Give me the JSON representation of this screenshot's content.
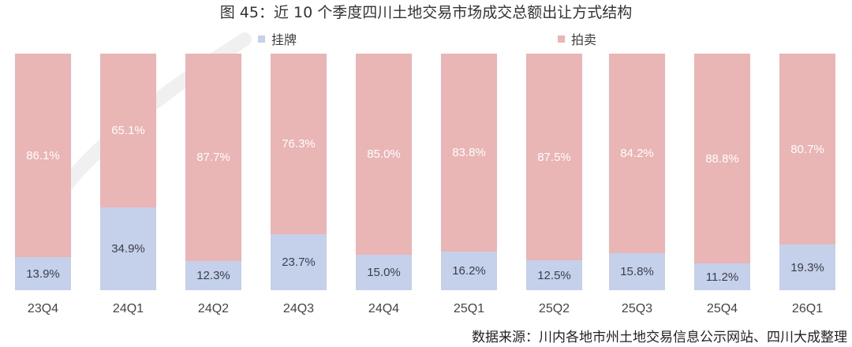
{
  "title": "图 45：近 10 个季度四川土地交易市场成交总额出让方式结构",
  "legend": [
    {
      "label": "挂牌",
      "color": "#C5D0EA"
    },
    {
      "label": "拍卖",
      "color": "#E9B5B5"
    }
  ],
  "source": "数据来源：川内各地市州土地交易信息公示网站、四川大成整理",
  "bars": [
    {
      "category": "23Q4",
      "listing": 13.9,
      "auction": 86.1,
      "listing_label": "13.9%",
      "auction_label": "86.1%"
    },
    {
      "category": "24Q1",
      "listing": 34.9,
      "auction": 65.1,
      "listing_label": "34.9%",
      "auction_label": "65.1%"
    },
    {
      "category": "24Q2",
      "listing": 12.3,
      "auction": 87.7,
      "listing_label": "12.3%",
      "auction_label": "87.7%"
    },
    {
      "category": "24Q3",
      "listing": 23.7,
      "auction": 76.3,
      "listing_label": "23.7%",
      "auction_label": "76.3%"
    },
    {
      "category": "24Q4",
      "listing": 15.0,
      "auction": 85.0,
      "listing_label": "15.0%",
      "auction_label": "85.0%"
    },
    {
      "category": "25Q1",
      "listing": 16.2,
      "auction": 83.8,
      "listing_label": "16.2%",
      "auction_label": "83.8%"
    },
    {
      "category": "25Q2",
      "listing": 12.5,
      "auction": 87.5,
      "listing_label": "12.5%",
      "auction_label": "87.5%"
    },
    {
      "category": "25Q3",
      "listing": 15.8,
      "auction": 84.2,
      "listing_label": "15.8%",
      "auction_label": "84.2%"
    },
    {
      "category": "25Q4",
      "listing": 11.2,
      "auction": 88.8,
      "listing_label": "11.2%",
      "auction_label": "88.8%"
    },
    {
      "category": "26Q1",
      "listing": 19.3,
      "auction": 80.7,
      "listing_label": "19.3%",
      "auction_label": "80.7%"
    }
  ],
  "chart_data": {
    "type": "bar",
    "stacked": true,
    "percent": true,
    "title": "图 45：近 10 个季度四川土地交易市场成交总额出让方式结构",
    "categories": [
      "23Q4",
      "24Q1",
      "24Q2",
      "24Q3",
      "24Q4",
      "25Q1",
      "25Q2",
      "25Q3",
      "25Q4",
      "26Q1"
    ],
    "series": [
      {
        "name": "挂牌",
        "color": "#C5D0EA",
        "values": [
          13.9,
          34.9,
          12.3,
          23.7,
          15.0,
          16.2,
          12.5,
          15.8,
          11.2,
          19.3
        ]
      },
      {
        "name": "拍卖",
        "color": "#E9B5B5",
        "values": [
          86.1,
          65.1,
          87.7,
          76.3,
          85.0,
          83.8,
          87.5,
          84.2,
          88.8,
          80.7
        ]
      }
    ],
    "xlabel": "",
    "ylabel": "",
    "ylim": [
      0,
      100
    ],
    "grid": false,
    "legend_position": "top",
    "data_labels": true,
    "note": "数据来源：川内各地市州土地交易信息公示网站、四川大成整理"
  }
}
